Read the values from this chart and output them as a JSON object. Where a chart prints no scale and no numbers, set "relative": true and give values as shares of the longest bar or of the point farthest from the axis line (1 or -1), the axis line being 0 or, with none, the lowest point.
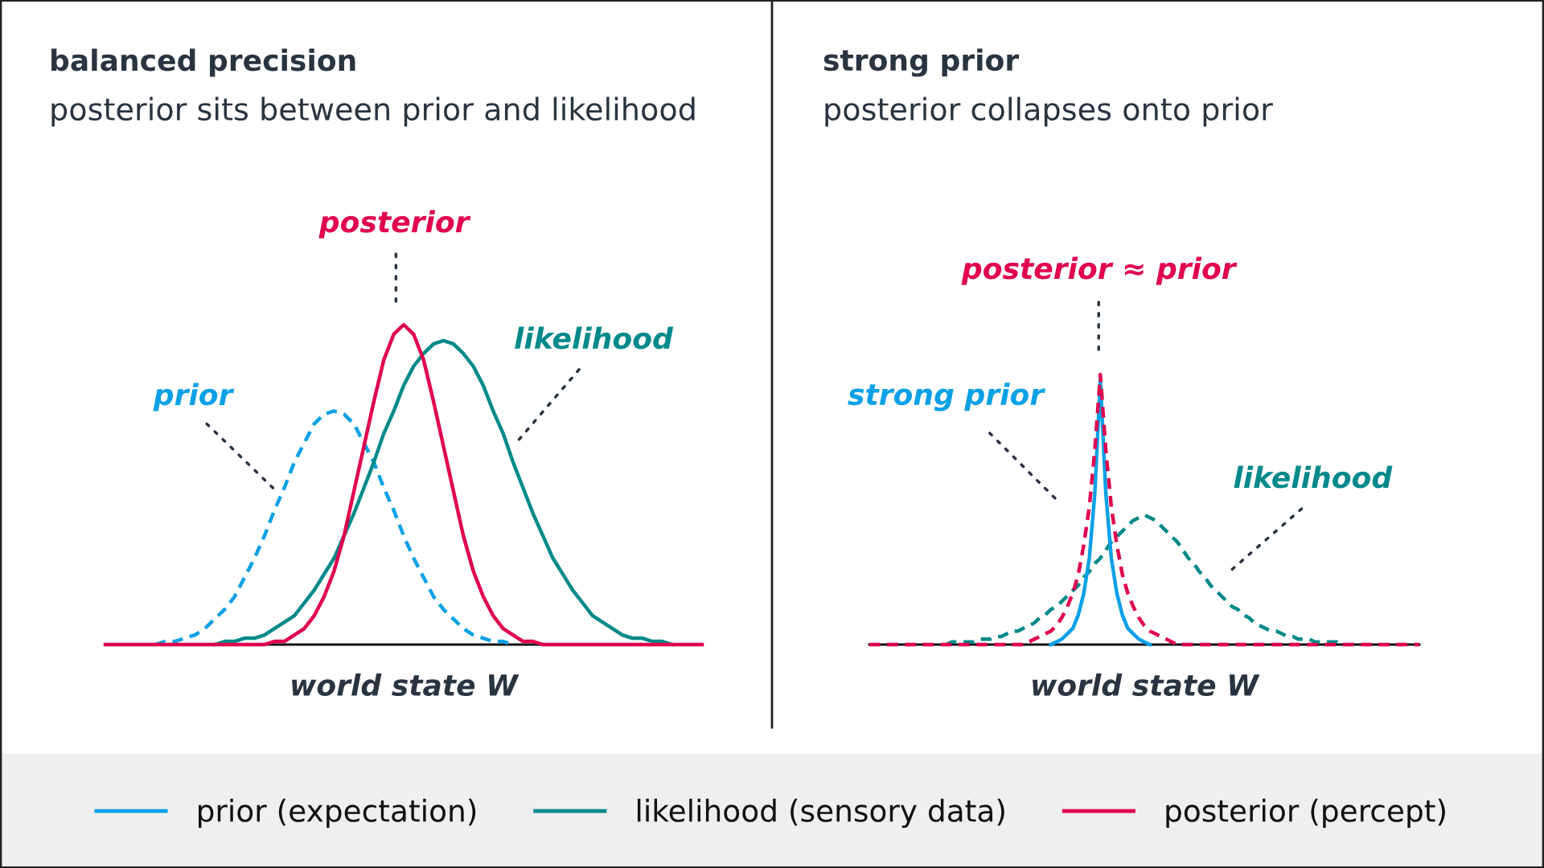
{
  "chart_data": [
    {
      "type": "line",
      "title": "balanced precision",
      "subtitle": "posterior sits between prior and likelihood",
      "xlabel": "world state W",
      "relative": true,
      "tick_labels": false,
      "grid": false,
      "legend": "bottom",
      "marker": "none",
      "categories": [
        null,
        null,
        null,
        null,
        null,
        null,
        null,
        null,
        null,
        null,
        null,
        null,
        null,
        null,
        null,
        null,
        null,
        null,
        null,
        null,
        null,
        null,
        null,
        null,
        null,
        null,
        null,
        null,
        null,
        null,
        null,
        null,
        null,
        null,
        null,
        null,
        null,
        null,
        null,
        null,
        null,
        null,
        null,
        null,
        null,
        null,
        null,
        null,
        null,
        null,
        null,
        null,
        null,
        null,
        null,
        null,
        null,
        null,
        null,
        null,
        null
      ],
      "series": [
        {
          "name": "prior (expectation)",
          "color": "#0aa0e6",
          "line_style": "dashed",
          "values": [
            null,
            null,
            null,
            null,
            null,
            0,
            0.01,
            0.01,
            0.02,
            0.03,
            0.05,
            0.08,
            0.11,
            0.15,
            0.21,
            0.27,
            0.34,
            0.42,
            0.49,
            0.57,
            0.63,
            0.69,
            0.72,
            0.73,
            0.72,
            0.69,
            0.63,
            0.57,
            0.49,
            0.42,
            0.34,
            0.27,
            0.21,
            0.15,
            0.11,
            0.08,
            0.05,
            0.03,
            0.02,
            0.01,
            0.01,
            0,
            null,
            null,
            null,
            null,
            null,
            null,
            null,
            null,
            null,
            null,
            null,
            null,
            null,
            null,
            null,
            null,
            null,
            null,
            null
          ]
        },
        {
          "name": "likelihood (sensory data)",
          "color": "#00898a",
          "line_style": "solid",
          "values": [
            null,
            null,
            null,
            null,
            null,
            null,
            null,
            null,
            null,
            null,
            null,
            0,
            0.01,
            0.01,
            0.02,
            0.02,
            0.03,
            0.05,
            0.07,
            0.09,
            0.13,
            0.17,
            0.22,
            0.27,
            0.34,
            0.41,
            0.49,
            0.57,
            0.66,
            0.73,
            0.81,
            0.87,
            0.91,
            0.94,
            0.95,
            0.94,
            0.91,
            0.87,
            0.81,
            0.73,
            0.66,
            0.57,
            0.49,
            0.41,
            0.34,
            0.27,
            0.22,
            0.17,
            0.13,
            0.09,
            0.07,
            0.05,
            0.03,
            0.02,
            0.02,
            0.01,
            0.01,
            0,
            null,
            null,
            null
          ]
        },
        {
          "name": "posterior (percept)",
          "color": "#e0004d",
          "line_style": "solid",
          "values": [
            0,
            0,
            0,
            0,
            0,
            0,
            0,
            0,
            0,
            0,
            0,
            0,
            0,
            0,
            0,
            0,
            0,
            0.01,
            0.01,
            0.03,
            0.05,
            0.09,
            0.15,
            0.23,
            0.34,
            0.48,
            0.62,
            0.76,
            0.89,
            0.97,
            1,
            0.97,
            0.89,
            0.76,
            0.62,
            0.48,
            0.34,
            0.23,
            0.15,
            0.09,
            0.05,
            0.03,
            0.01,
            0.01,
            0,
            0,
            0,
            0,
            0,
            0,
            0,
            0,
            0,
            0,
            0,
            0,
            0,
            0,
            0,
            0,
            0
          ]
        }
      ],
      "annotations": [
        "prior",
        "likelihood",
        "posterior"
      ]
    },
    {
      "type": "line",
      "title": "strong prior",
      "subtitle": "posterior collapses onto prior",
      "xlabel": "world state W",
      "relative": true,
      "tick_labels": false,
      "grid": false,
      "marker": "none",
      "categories": [
        null,
        null,
        null,
        null,
        null,
        null,
        null,
        null,
        null,
        null,
        null,
        null,
        null,
        null,
        null,
        null,
        null,
        null,
        null,
        null,
        null,
        null,
        null,
        null,
        null,
        null,
        null,
        null,
        null,
        null,
        null,
        null,
        null,
        null,
        null,
        null,
        null,
        null,
        null,
        null,
        null,
        null,
        null,
        null,
        null,
        null,
        null,
        null,
        null,
        null,
        null,
        null,
        null,
        null,
        null,
        null,
        null,
        null,
        null,
        null,
        null,
        null,
        null,
        null,
        null,
        null,
        null,
        null,
        null,
        null,
        null,
        null,
        null,
        null,
        null,
        null,
        null,
        null,
        null,
        null,
        null,
        null,
        null,
        null,
        null,
        null,
        null,
        null,
        null,
        null,
        null,
        null,
        null,
        null,
        null,
        null,
        null,
        null,
        null,
        null,
        null
      ],
      "series": [
        {
          "color": "#00898a",
          "line_style": "dashed",
          "values": [
            null,
            null,
            null,
            null,
            null,
            null,
            null,
            null,
            null,
            null,
            null,
            null,
            null,
            null,
            0,
            0.01,
            0.01,
            0.01,
            0.01,
            0.01,
            0.02,
            0.02,
            0.02,
            0.03,
            0.03,
            0.04,
            0.05,
            0.05,
            0.06,
            0.07,
            0.08,
            0.1,
            0.11,
            0.13,
            0.14,
            0.16,
            0.18,
            0.2,
            0.22,
            0.25,
            0.27,
            0.3,
            0.32,
            0.35,
            0.38,
            0.4,
            0.42,
            0.44,
            0.46,
            0.47,
            0.48,
            0.47,
            0.46,
            0.44,
            0.42,
            0.4,
            0.38,
            0.35,
            0.32,
            0.3,
            0.27,
            0.25,
            0.22,
            0.2,
            0.18,
            0.16,
            0.14,
            0.13,
            0.11,
            0.1,
            0.08,
            0.07,
            0.06,
            0.05,
            0.05,
            0.04,
            0.03,
            0.03,
            0.02,
            0.02,
            0.02,
            0.01,
            0.01,
            0.01,
            0.01,
            0.01,
            0,
            null,
            null,
            null,
            null,
            null,
            null,
            null,
            null,
            null,
            null,
            null,
            null,
            null,
            null
          ]
        },
        {
          "color": "#0aa0e6",
          "line_style": "solid",
          "values": [
            null,
            null,
            null,
            null,
            null,
            null,
            null,
            null,
            null,
            null,
            null,
            null,
            null,
            null,
            null,
            null,
            null,
            null,
            null,
            null,
            null,
            null,
            null,
            null,
            null,
            null,
            null,
            null,
            null,
            null,
            null,
            null,
            null,
            0,
            0.01,
            0.02,
            0.04,
            0.06,
            0.11,
            0.19,
            0.32,
            0.56,
            0.98,
            0.56,
            0.32,
            0.19,
            0.11,
            0.06,
            0.04,
            0.02,
            0.01,
            0,
            null,
            null,
            null,
            null,
            null,
            null,
            null,
            null,
            null,
            null,
            null,
            null,
            null,
            null,
            null,
            null,
            null,
            null,
            null,
            null,
            null,
            null,
            null,
            null,
            null,
            null,
            null,
            null,
            null,
            null,
            null,
            null,
            null,
            null,
            null,
            null,
            null,
            null,
            null,
            null,
            null,
            null,
            null,
            null,
            null,
            null,
            null,
            null,
            null
          ]
        },
        {
          "color": "#e0004d",
          "line_style": "dashed",
          "values": [
            0,
            0,
            0,
            0,
            0,
            0,
            0,
            0,
            0,
            0,
            0,
            0,
            0,
            0,
            0,
            0,
            0,
            0,
            0,
            0,
            0,
            0,
            0,
            0,
            0,
            0,
            0,
            0,
            0,
            0.01,
            0.02,
            0.03,
            0.04,
            0.05,
            0.07,
            0.1,
            0.14,
            0.19,
            0.26,
            0.37,
            0.51,
            0.72,
            1,
            0.72,
            0.51,
            0.37,
            0.26,
            0.19,
            0.14,
            0.1,
            0.07,
            0.05,
            0.04,
            0.03,
            0.02,
            0.01,
            0,
            0,
            0,
            0,
            0,
            0,
            0,
            0,
            0,
            0,
            0,
            0,
            0,
            0,
            0,
            0,
            0,
            0,
            0,
            0,
            0,
            0,
            0,
            0,
            0,
            0,
            0,
            0,
            0,
            0,
            0,
            0,
            0,
            0,
            0,
            0,
            0,
            0,
            0,
            0,
            0,
            0,
            0,
            0,
            0
          ]
        }
      ],
      "annotations": [
        "strong prior",
        "likelihood",
        "posterior ≈ prior"
      ]
    }
  ]
}
